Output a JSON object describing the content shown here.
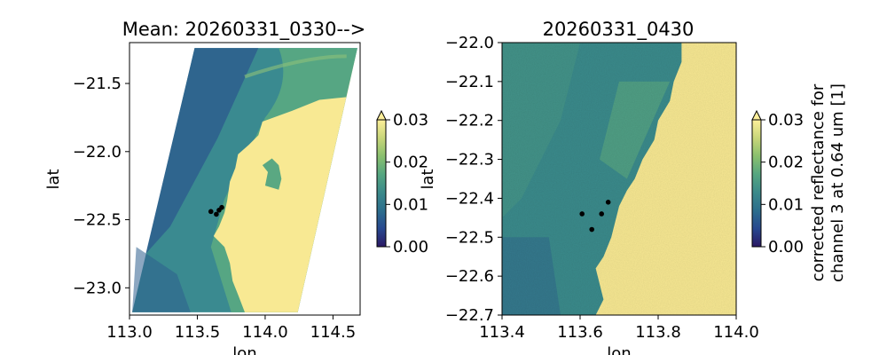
{
  "chart_data": [
    {
      "type": "heatmap",
      "title": "Mean: 20260331_0330-->",
      "xlabel": "lon",
      "ylabel": "lat",
      "xlim": [
        113.0,
        114.7
      ],
      "ylim": [
        -23.2,
        -21.2
      ],
      "xticks": [
        113.0,
        113.5,
        114.0,
        114.5
      ],
      "xtick_labels": [
        "113.0",
        "113.5",
        "114.0",
        "114.5"
      ],
      "yticks": [
        -21.5,
        -22.0,
        -22.5,
        -23.0
      ],
      "ytick_labels": [
        "−21.5",
        "−22.0",
        "−22.5",
        "−23.0"
      ],
      "swath_corners": [
        [
          113.48,
          -21.24
        ],
        [
          114.68,
          -21.24
        ],
        [
          114.24,
          -23.18
        ],
        [
          113.02,
          -23.18
        ]
      ],
      "points": [
        {
          "x": 113.6,
          "y": -22.44
        },
        {
          "x": 113.64,
          "y": -22.46
        },
        {
          "x": 113.66,
          "y": -22.43
        },
        {
          "x": 113.68,
          "y": -22.41
        }
      ],
      "colorbar": {
        "range": [
          0.0,
          0.03
        ],
        "ticks": [
          "0.00",
          "0.01",
          "0.02",
          "0.03"
        ],
        "extend": "max",
        "colormap": "haline",
        "label": ""
      }
    },
    {
      "type": "heatmap",
      "title": "20260331_0430",
      "xlabel": "lon",
      "ylabel": "lat",
      "xlim": [
        113.4,
        114.0
      ],
      "ylim": [
        -22.7,
        -22.0
      ],
      "xticks": [
        113.4,
        113.6,
        113.8,
        114.0
      ],
      "xtick_labels": [
        "113.4",
        "113.6",
        "113.8",
        "114.0"
      ],
      "yticks": [
        -22.0,
        -22.1,
        -22.2,
        -22.3,
        -22.4,
        -22.5,
        -22.6,
        -22.7
      ],
      "ytick_labels": [
        "−22.0",
        "−22.1",
        "−22.2",
        "−22.3",
        "−22.4",
        "−22.5",
        "−22.6",
        "−22.7"
      ],
      "points": [
        {
          "x": 113.605,
          "y": -22.44
        },
        {
          "x": 113.63,
          "y": -22.48
        },
        {
          "x": 113.655,
          "y": -22.44
        },
        {
          "x": 113.672,
          "y": -22.41
        }
      ],
      "colorbar": {
        "range": [
          0.0,
          0.03
        ],
        "ticks": [
          "0.00",
          "0.01",
          "0.02",
          "0.03"
        ],
        "extend": "max",
        "colormap": "haline",
        "label_line1": "corrected reflectance for",
        "label_line2": "channel 3 at 0.64 um [1]"
      }
    }
  ],
  "colors": {
    "land": "#f8e993",
    "water_deep": "#2e5e8e",
    "water_mid": "#3a8a90",
    "water_shallow": "#5aa882",
    "cmap_stops": [
      "#2a1864",
      "#27488f",
      "#2c6e8d",
      "#3b8a8a",
      "#55a680",
      "#8ac06e",
      "#c8d67a",
      "#fdef9a"
    ]
  }
}
